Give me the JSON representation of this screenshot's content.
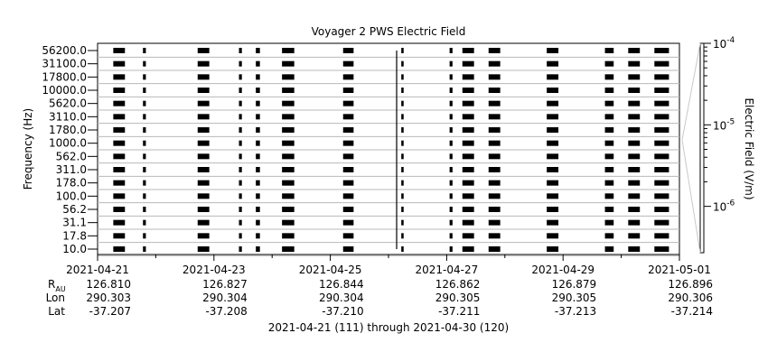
{
  "chart_data": {
    "type": "heatmap",
    "title": "Voyager 2 PWS Electric Field",
    "ylabel": "Frequency (Hz)",
    "colorbar_label": "Electric Field (V/m)",
    "colorbar_ticks": [
      {
        "base": "10",
        "exp": "-4",
        "value": 0.0001
      },
      {
        "base": "10",
        "exp": "-5",
        "value": 1e-05
      },
      {
        "base": "10",
        "exp": "-6",
        "value": 1e-06
      }
    ],
    "colorbar_range": [
      2.7e-07,
      0.0001
    ],
    "colorbar_scale": "log",
    "channels": [
      "56200.0",
      "31100.0",
      "17800.0",
      "10000.0",
      "5620.0",
      "3110.0",
      "1780.0",
      "1000.0",
      "562.0",
      "311.0",
      "178.0",
      "100.0",
      "56.2",
      "31.1",
      "17.8",
      "10.0"
    ],
    "x_ticks": [
      "2021-04-21",
      "2021-04-23",
      "2021-04-25",
      "2021-04-27",
      "2021-04-29",
      "2021-05-01"
    ],
    "x_range_days": [
      0,
      10
    ],
    "ephemeris": {
      "labels": {
        "r_main": "R",
        "r_sub": "AU",
        "lon": "Lon",
        "lat": "Lat"
      },
      "columns": [
        {
          "r": "126.810",
          "lon": "290.303",
          "lat": "-37.207"
        },
        {
          "r": "126.827",
          "lon": "290.304",
          "lat": "-37.208"
        },
        {
          "r": "126.844",
          "lon": "290.304",
          "lat": "-37.210"
        },
        {
          "r": "126.862",
          "lon": "290.305",
          "lat": "-37.211"
        },
        {
          "r": "126.879",
          "lon": "290.305",
          "lat": "-37.213"
        },
        {
          "r": "126.896",
          "lon": "290.306",
          "lat": "-37.214"
        }
      ]
    },
    "footer": "2021-04-21 (111) through 2021-04-30 (120)",
    "data_blocks_days": [
      [
        0.27,
        0.47
      ],
      [
        0.78,
        0.83
      ],
      [
        1.72,
        1.92
      ],
      [
        2.43,
        2.48
      ],
      [
        2.72,
        2.79
      ],
      [
        3.17,
        3.38
      ],
      [
        4.22,
        4.4
      ],
      [
        5.22,
        5.26
      ],
      [
        6.05,
        6.1
      ],
      [
        6.27,
        6.47
      ],
      [
        6.72,
        6.92
      ],
      [
        7.72,
        7.92
      ],
      [
        8.72,
        8.87
      ],
      [
        9.12,
        9.32
      ],
      [
        9.57,
        9.82
      ]
    ],
    "vertical_marker_day": 5.14,
    "grid": true
  }
}
